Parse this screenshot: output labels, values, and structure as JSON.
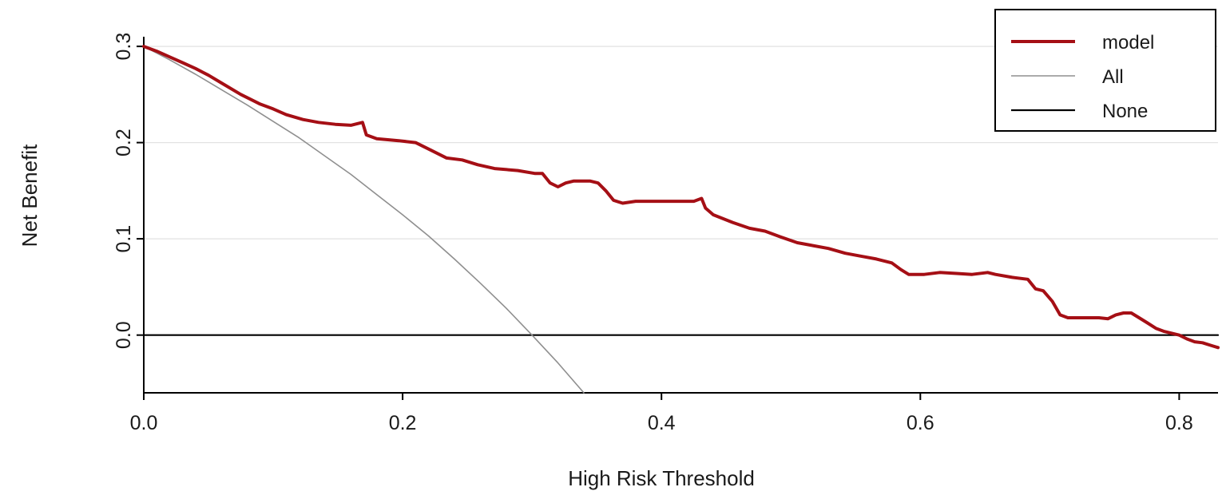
{
  "chart_data": {
    "type": "line",
    "title": "",
    "xlabel": "High Risk Threshold",
    "ylabel": "Net Benefit",
    "xlim": [
      0,
      0.83
    ],
    "ylim": [
      -0.06,
      0.31
    ],
    "x_ticks": [
      0.0,
      0.2,
      0.4,
      0.6,
      0.8
    ],
    "x_tick_labels": [
      "0.0",
      "0.2",
      "0.4",
      "0.6",
      "0.8"
    ],
    "y_ticks": [
      0.0,
      0.1,
      0.2,
      0.3
    ],
    "y_tick_labels": [
      "0.0",
      "0.1",
      "0.2",
      "0.3"
    ],
    "grid": {
      "show": true,
      "color": "#e2e2e2",
      "horizontal_at": [
        0.0,
        0.1,
        0.2,
        0.3
      ]
    },
    "axis_color": "#000000",
    "text_color": "#1a1a1a",
    "legend": {
      "position": "top-right",
      "background": "#ffffff",
      "border_color": "#000000",
      "entries": [
        "model",
        "All",
        "None"
      ]
    },
    "series": [
      {
        "name": "model",
        "color": "#a50f15",
        "line_width": 4,
        "x": [
          0.0,
          0.01,
          0.02,
          0.03,
          0.04,
          0.05,
          0.06,
          0.075,
          0.09,
          0.1,
          0.11,
          0.123,
          0.135,
          0.148,
          0.16,
          0.169,
          0.172,
          0.18,
          0.197,
          0.21,
          0.222,
          0.234,
          0.246,
          0.258,
          0.271,
          0.289,
          0.302,
          0.308,
          0.314,
          0.32,
          0.326,
          0.332,
          0.345,
          0.351,
          0.357,
          0.363,
          0.37,
          0.38,
          0.39,
          0.406,
          0.425,
          0.431,
          0.434,
          0.44,
          0.455,
          0.468,
          0.48,
          0.492,
          0.505,
          0.517,
          0.529,
          0.542,
          0.554,
          0.566,
          0.578,
          0.585,
          0.591,
          0.603,
          0.615,
          0.628,
          0.64,
          0.652,
          0.658,
          0.671,
          0.683,
          0.689,
          0.695,
          0.702,
          0.708,
          0.714,
          0.726,
          0.738,
          0.745,
          0.751,
          0.757,
          0.763,
          0.769,
          0.775,
          0.782,
          0.788,
          0.794,
          0.8,
          0.806,
          0.812,
          0.818,
          0.825,
          0.83
        ],
        "y": [
          0.3,
          0.295,
          0.289,
          0.283,
          0.277,
          0.27,
          0.262,
          0.25,
          0.24,
          0.235,
          0.229,
          0.224,
          0.221,
          0.219,
          0.218,
          0.221,
          0.208,
          0.204,
          0.202,
          0.2,
          0.192,
          0.184,
          0.182,
          0.177,
          0.173,
          0.171,
          0.168,
          0.168,
          0.158,
          0.154,
          0.158,
          0.16,
          0.16,
          0.158,
          0.15,
          0.14,
          0.137,
          0.139,
          0.139,
          0.139,
          0.139,
          0.142,
          0.132,
          0.125,
          0.117,
          0.111,
          0.108,
          0.102,
          0.096,
          0.093,
          0.09,
          0.085,
          0.082,
          0.079,
          0.075,
          0.068,
          0.063,
          0.063,
          0.065,
          0.064,
          0.063,
          0.065,
          0.063,
          0.06,
          0.058,
          0.048,
          0.046,
          0.035,
          0.021,
          0.018,
          0.018,
          0.018,
          0.017,
          0.021,
          0.023,
          0.023,
          0.018,
          0.013,
          0.007,
          0.004,
          0.002,
          0.0,
          -0.004,
          -0.007,
          -0.008,
          -0.011,
          -0.013
        ]
      },
      {
        "name": "All",
        "color": "#8f8f8f",
        "line_width": 1.6,
        "x": [
          0.0,
          0.02,
          0.04,
          0.06,
          0.08,
          0.1,
          0.12,
          0.14,
          0.16,
          0.18,
          0.2,
          0.22,
          0.24,
          0.26,
          0.28,
          0.3,
          0.32,
          0.34
        ],
        "y": [
          0.3,
          0.286,
          0.271,
          0.255,
          0.239,
          0.222,
          0.205,
          0.186,
          0.167,
          0.146,
          0.125,
          0.103,
          0.079,
          0.054,
          0.028,
          0.0,
          -0.029,
          -0.06
        ]
      },
      {
        "name": "None",
        "color": "#000000",
        "line_width": 2.2,
        "x": [
          0.0,
          0.83
        ],
        "y": [
          0,
          0
        ]
      }
    ]
  }
}
